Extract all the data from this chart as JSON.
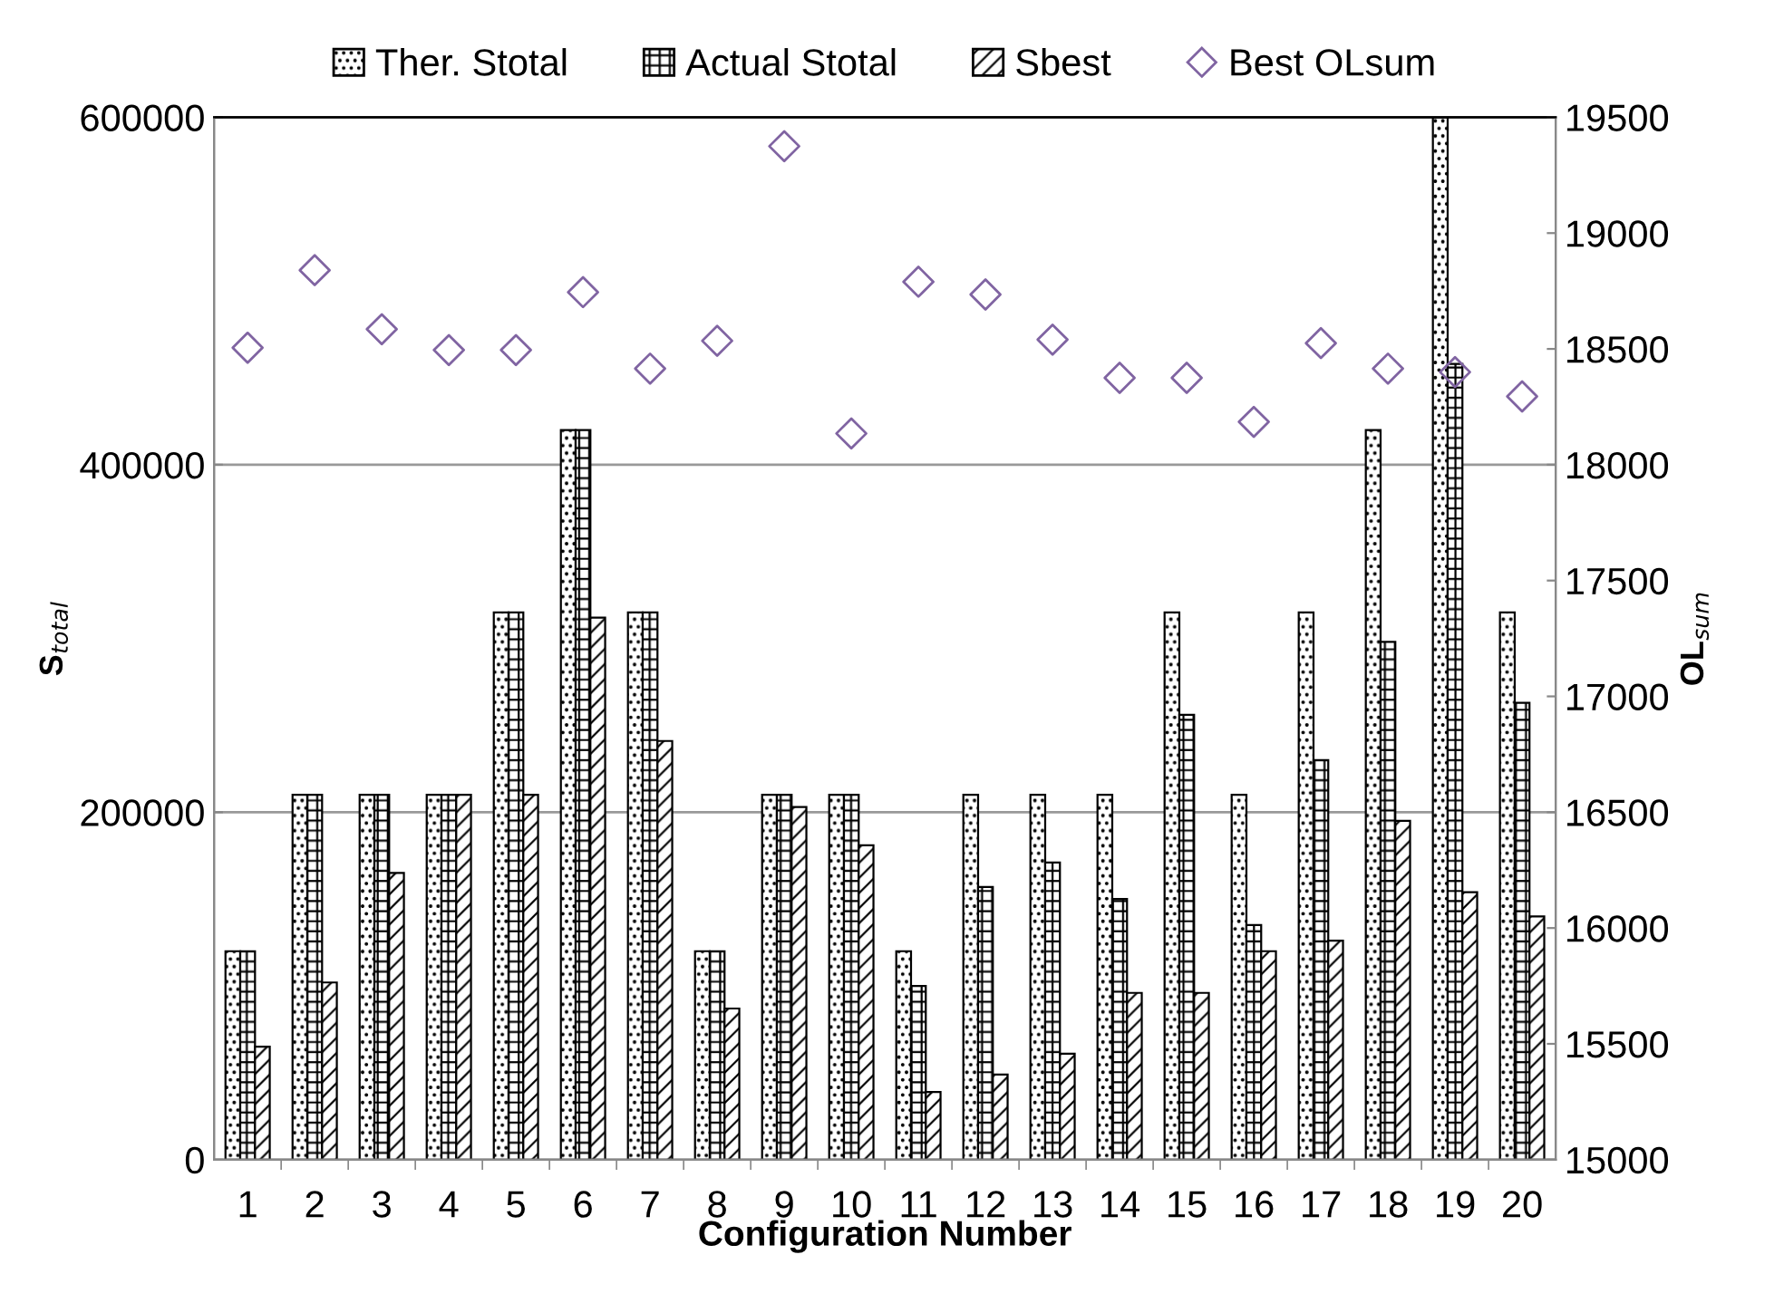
{
  "chart_data": {
    "type": "bar",
    "xlabel": "Configuration Number",
    "ylabel": "S$_{total}$",
    "y2label": "OL$_{sum}$",
    "categories": [
      "1",
      "2",
      "3",
      "4",
      "5",
      "6",
      "7",
      "8",
      "9",
      "10",
      "11",
      "12",
      "13",
      "14",
      "15",
      "16",
      "17",
      "18",
      "19",
      "20"
    ],
    "series": [
      {
        "name": "Ther. Stotal",
        "color": "#000000",
        "values": [
          120000,
          210000,
          210000,
          210000,
          315000,
          420000,
          315000,
          120000,
          210000,
          210000,
          120000,
          210000,
          210000,
          210000,
          315000,
          210000,
          315000,
          420000,
          600000,
          315000
        ]
      },
      {
        "name": "Actual Stotal",
        "color": "#000000",
        "values": [
          120000,
          210000,
          210000,
          210000,
          315000,
          420000,
          315000,
          120000,
          210000,
          210000,
          100000,
          157000,
          171000,
          150000,
          256000,
          135000,
          230000,
          298000,
          458000,
          263000
        ]
      },
      {
        "name": "Sbest",
        "color": "#000000",
        "values": [
          65000,
          102000,
          165000,
          210000,
          210000,
          312000,
          241000,
          87000,
          203000,
          181000,
          39000,
          49000,
          61000,
          96000,
          96000,
          120000,
          126000,
          195000,
          154000,
          140000
        ]
      },
      {
        "name": "Best OLsum",
        "type": "scatter",
        "axis": "y2",
        "color": "#8064a2",
        "marker": "diamond",
        "values": [
          18505,
          18840,
          18585,
          18495,
          18495,
          18745,
          18415,
          18535,
          19375,
          18135,
          18790,
          18735,
          18540,
          18375,
          18375,
          18185,
          18525,
          18415,
          18400,
          18295
        ]
      }
    ],
    "ylim": [
      0,
      600000
    ],
    "yticks": [
      0,
      200000,
      400000,
      600000
    ],
    "y2lim": [
      15000,
      19500
    ],
    "y2ticks": [
      15000,
      15500,
      16000,
      16500,
      17000,
      17500,
      18000,
      18500,
      19000,
      19500
    ],
    "grid": "y",
    "legend": "top"
  }
}
